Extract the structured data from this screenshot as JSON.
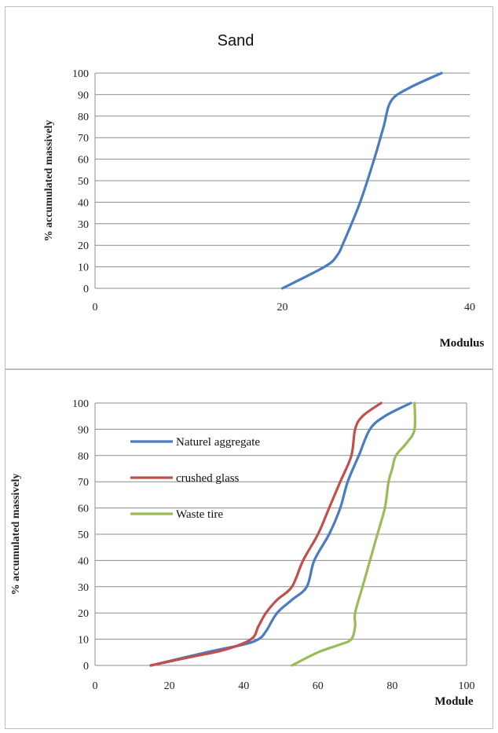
{
  "chart_data": [
    {
      "type": "line",
      "title": "Sand",
      "xlabel": "Modulus",
      "ylabel": "% accumulated massively",
      "xlim": [
        0,
        40
      ],
      "ylim": [
        0,
        100
      ],
      "xticks": [
        "0",
        "20",
        "40"
      ],
      "yticks": [
        "0",
        "10",
        "20",
        "30",
        "40",
        "50",
        "60",
        "70",
        "80",
        "90",
        "100"
      ],
      "grid": "horizontal",
      "legend": "none",
      "series": [
        {
          "color": "#4a7cc1",
          "x": [
            20,
            24.5,
            25.8,
            26.6,
            28.3,
            29.8,
            30.8,
            31.6,
            33.5,
            37
          ],
          "y": [
            0,
            10,
            15,
            22,
            40,
            60,
            75,
            87,
            93,
            100
          ]
        }
      ]
    },
    {
      "type": "line",
      "title": "",
      "xlabel": "Module",
      "ylabel": "% accumulated  massively",
      "xlim": [
        0,
        100
      ],
      "ylim": [
        0,
        100
      ],
      "xticks": [
        "0",
        "20",
        "40",
        "60",
        "80",
        "100"
      ],
      "yticks": [
        "0",
        "10",
        "20",
        "30",
        "40",
        "50",
        "60",
        "70",
        "80",
        "90",
        "100"
      ],
      "grid": "horizontal",
      "legend": "upper-left",
      "series": [
        {
          "name": "Naturel aggregate",
          "color": "#4a7cc1",
          "x": [
            15,
            30,
            40,
            44,
            46,
            49,
            53,
            57,
            59,
            63,
            66,
            68,
            71,
            74,
            78,
            85
          ],
          "y": [
            0,
            5,
            8,
            10,
            13,
            20,
            25,
            30,
            40,
            50,
            60,
            70,
            80,
            90,
            95,
            100
          ]
        },
        {
          "name": "crushed glass",
          "color": "#c0504d",
          "x": [
            15,
            25,
            35,
            42,
            44,
            46,
            49,
            53,
            56,
            60,
            63,
            66,
            69,
            70,
            72,
            77
          ],
          "y": [
            0,
            3,
            6,
            10,
            15,
            20,
            25,
            30,
            40,
            50,
            60,
            70,
            80,
            90,
            95,
            100
          ]
        },
        {
          "name": "Waste tire",
          "color": "#9bbb59",
          "x": [
            53,
            60,
            66,
            69,
            70,
            70,
            72,
            74,
            76,
            78,
            79,
            80,
            81,
            84,
            86,
            86
          ],
          "y": [
            0,
            5,
            8,
            10,
            15,
            20,
            30,
            40,
            50,
            60,
            70,
            75,
            80,
            85,
            90,
            100
          ]
        }
      ]
    }
  ]
}
